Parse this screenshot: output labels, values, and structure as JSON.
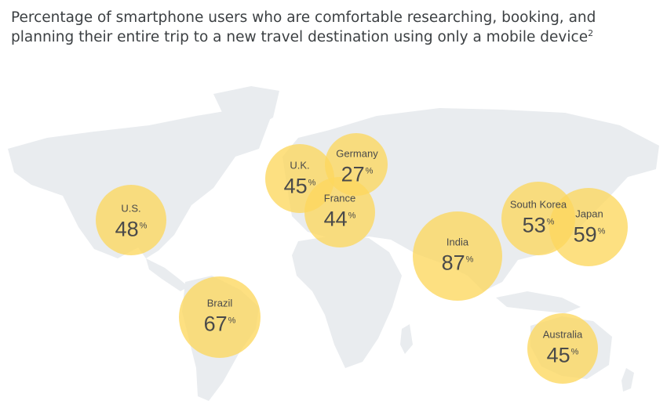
{
  "title": "Percentage of smartphone users who are comfortable researching, booking, and planning their entire trip to a new travel destination using only a mobile device",
  "title_footnote": "2",
  "colors": {
    "bubble": "#fcd75e",
    "land": "#e9ecef",
    "text": "#4a4a4a"
  },
  "percent_sign": "%",
  "countries": [
    {
      "id": "us",
      "name": "U.S.",
      "value": 48
    },
    {
      "id": "uk",
      "name": "U.K.",
      "value": 45
    },
    {
      "id": "germany",
      "name": "Germany",
      "value": 27
    },
    {
      "id": "france",
      "name": "France",
      "value": 44
    },
    {
      "id": "india",
      "name": "India",
      "value": 87
    },
    {
      "id": "south-korea",
      "name": "South Korea",
      "value": 53
    },
    {
      "id": "japan",
      "name": "Japan",
      "value": 59
    },
    {
      "id": "brazil",
      "name": "Brazil",
      "value": 67
    },
    {
      "id": "australia",
      "name": "Australia",
      "value": 45
    }
  ]
}
